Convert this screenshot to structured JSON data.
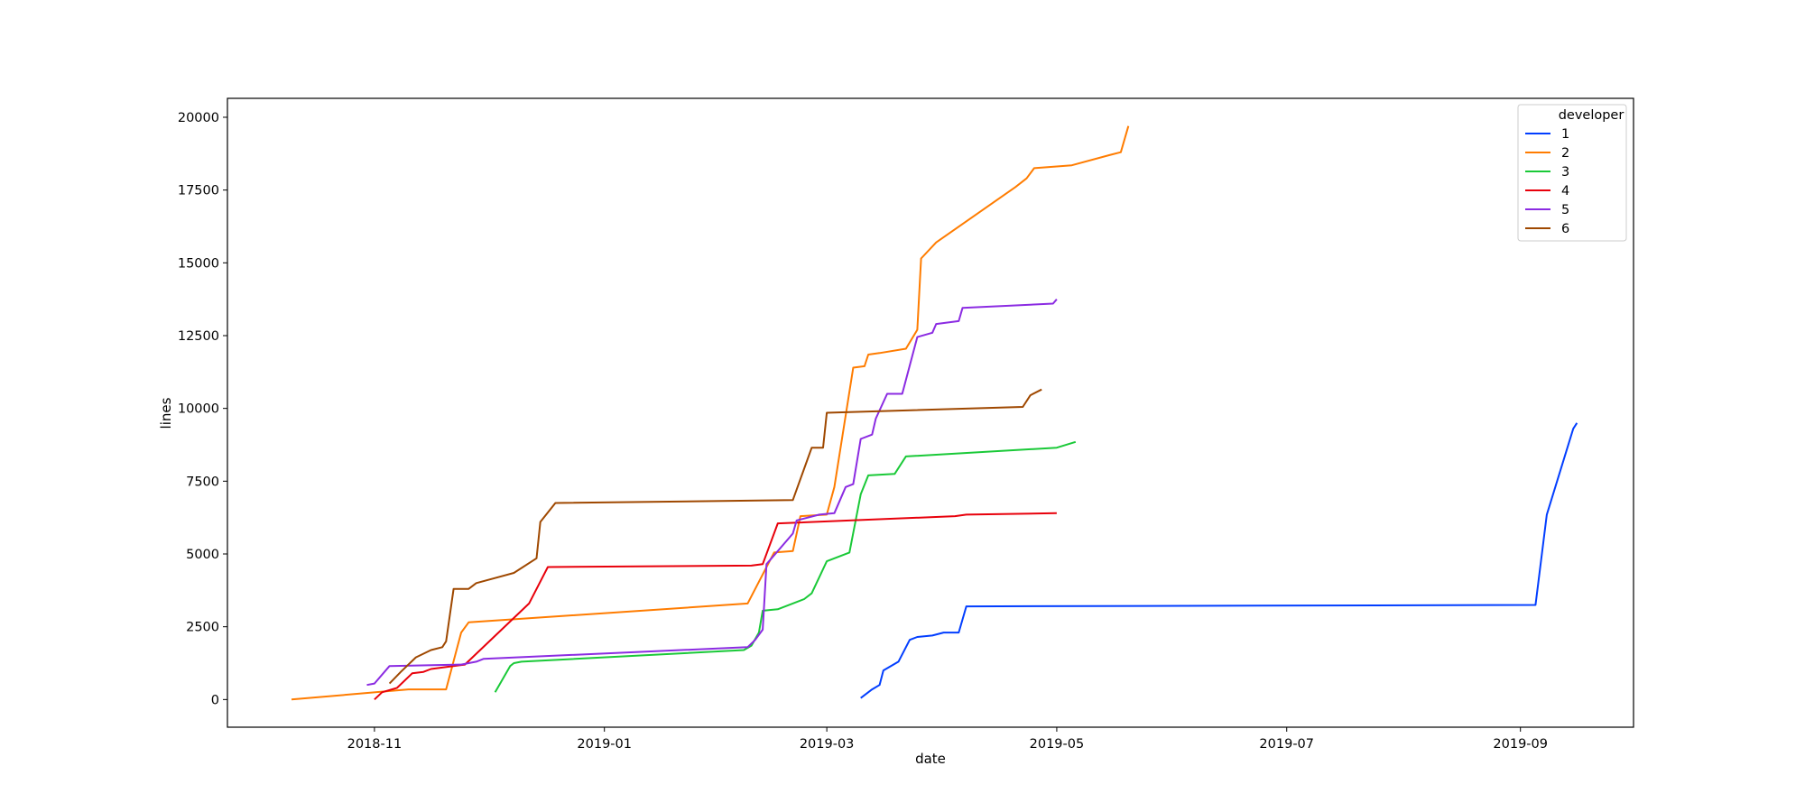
{
  "chart_data": {
    "type": "line",
    "xlabel": "date",
    "ylabel": "lines",
    "x_ticks": [
      "2018-11",
      "2019-01",
      "2019-03",
      "2019-05",
      "2019-07",
      "2019-09"
    ],
    "y_ticks": [
      "0",
      "2500",
      "5000",
      "7500",
      "10000",
      "12500",
      "15000",
      "17500",
      "20000"
    ],
    "xlim": [
      "2018-09-23",
      "2019-10-01"
    ],
    "ylim": [
      -950,
      20650
    ],
    "grid": false,
    "legend": {
      "title": "developer",
      "position": "top-right"
    },
    "series": [
      {
        "name": "1",
        "color": "#023eff",
        "points": [
          [
            "2019-03-10",
            50
          ],
          [
            "2019-03-13",
            350
          ],
          [
            "2019-03-15",
            500
          ],
          [
            "2019-03-16",
            1000
          ],
          [
            "2019-03-20",
            1300
          ],
          [
            "2019-03-23",
            2050
          ],
          [
            "2019-03-25",
            2150
          ],
          [
            "2019-03-29",
            2200
          ],
          [
            "2019-04-01",
            2300
          ],
          [
            "2019-04-05",
            2300
          ],
          [
            "2019-04-07",
            3200
          ],
          [
            "2019-09-05",
            3250
          ],
          [
            "2019-09-08",
            6350
          ],
          [
            "2019-09-15",
            9300
          ],
          [
            "2019-09-16",
            9500
          ]
        ]
      },
      {
        "name": "2",
        "color": "#ff7c00",
        "points": [
          [
            "2018-10-10",
            0
          ],
          [
            "2018-11-10",
            350
          ],
          [
            "2018-11-20",
            350
          ],
          [
            "2018-11-24",
            2300
          ],
          [
            "2018-11-26",
            2650
          ],
          [
            "2019-02-08",
            3300
          ],
          [
            "2019-02-15",
            5050
          ],
          [
            "2019-02-20",
            5100
          ],
          [
            "2019-02-22",
            6300
          ],
          [
            "2019-03-01",
            6350
          ],
          [
            "2019-03-03",
            7300
          ],
          [
            "2019-03-08",
            11400
          ],
          [
            "2019-03-11",
            11450
          ],
          [
            "2019-03-12",
            11850
          ],
          [
            "2019-03-15",
            11900
          ],
          [
            "2019-03-22",
            12050
          ],
          [
            "2019-03-25",
            12700
          ],
          [
            "2019-03-26",
            15150
          ],
          [
            "2019-03-30",
            15700
          ],
          [
            "2019-04-20",
            17600
          ],
          [
            "2019-04-23",
            17900
          ],
          [
            "2019-04-25",
            18250
          ],
          [
            "2019-05-05",
            18350
          ],
          [
            "2019-05-15",
            18700
          ],
          [
            "2019-05-18",
            18800
          ],
          [
            "2019-05-20",
            19700
          ]
        ]
      },
      {
        "name": "3",
        "color": "#1ac938",
        "points": [
          [
            "2018-12-03",
            250
          ],
          [
            "2018-12-07",
            1150
          ],
          [
            "2018-12-08",
            1250
          ],
          [
            "2018-12-10",
            1300
          ],
          [
            "2019-02-07",
            1700
          ],
          [
            "2019-02-09",
            1850
          ],
          [
            "2019-02-11",
            2300
          ],
          [
            "2019-02-12",
            3050
          ],
          [
            "2019-02-16",
            3100
          ],
          [
            "2019-02-23",
            3450
          ],
          [
            "2019-02-25",
            3650
          ],
          [
            "2019-02-29",
            4750
          ],
          [
            "2019-03-07",
            5050
          ],
          [
            "2019-03-10",
            7050
          ],
          [
            "2019-03-12",
            7700
          ],
          [
            "2019-03-19",
            7750
          ],
          [
            "2019-03-22",
            8350
          ],
          [
            "2019-05-01",
            8650
          ],
          [
            "2019-05-06",
            8850
          ]
        ]
      },
      {
        "name": "4",
        "color": "#e8000b",
        "points": [
          [
            "2018-11-01",
            0
          ],
          [
            "2018-11-03",
            250
          ],
          [
            "2018-11-07",
            400
          ],
          [
            "2018-11-11",
            900
          ],
          [
            "2018-11-14",
            950
          ],
          [
            "2018-11-16",
            1050
          ],
          [
            "2018-11-25",
            1200
          ],
          [
            "2018-12-12",
            3300
          ],
          [
            "2018-12-17",
            4550
          ],
          [
            "2019-02-09",
            4600
          ],
          [
            "2019-02-12",
            4650
          ],
          [
            "2019-02-16",
            6050
          ],
          [
            "2019-04-04",
            6300
          ],
          [
            "2019-04-07",
            6350
          ],
          [
            "2019-05-01",
            6400
          ]
        ]
      },
      {
        "name": "5",
        "color": "#8b2be2",
        "points": [
          [
            "2018-10-30",
            500
          ],
          [
            "2018-11-01",
            550
          ],
          [
            "2018-11-05",
            1150
          ],
          [
            "2018-11-24",
            1200
          ],
          [
            "2018-11-28",
            1300
          ],
          [
            "2018-11-30",
            1400
          ],
          [
            "2019-02-08",
            1800
          ],
          [
            "2019-02-10",
            2050
          ],
          [
            "2019-02-12",
            2400
          ],
          [
            "2019-02-13",
            4650
          ],
          [
            "2019-02-20",
            5700
          ],
          [
            "2019-02-21",
            6150
          ],
          [
            "2019-02-27",
            6350
          ],
          [
            "2019-03-03",
            6400
          ],
          [
            "2019-03-06",
            7300
          ],
          [
            "2019-03-08",
            7400
          ],
          [
            "2019-03-10",
            8950
          ],
          [
            "2019-03-13",
            9100
          ],
          [
            "2019-03-14",
            9650
          ],
          [
            "2019-03-17",
            10500
          ],
          [
            "2019-03-21",
            10500
          ],
          [
            "2019-03-25",
            12450
          ],
          [
            "2019-03-29",
            12600
          ],
          [
            "2019-03-30",
            12900
          ],
          [
            "2019-04-05",
            13000
          ],
          [
            "2019-04-06",
            13450
          ],
          [
            "2019-04-30",
            13600
          ],
          [
            "2019-05-01",
            13750
          ]
        ]
      },
      {
        "name": "6",
        "color": "#9f4800",
        "points": [
          [
            "2018-11-05",
            550
          ],
          [
            "2018-11-08",
            950
          ],
          [
            "2018-11-12",
            1450
          ],
          [
            "2018-11-16",
            1700
          ],
          [
            "2018-11-19",
            1800
          ],
          [
            "2018-11-20",
            2000
          ],
          [
            "2018-11-22",
            3800
          ],
          [
            "2018-11-26",
            3800
          ],
          [
            "2018-11-28",
            4000
          ],
          [
            "2018-12-08",
            4350
          ],
          [
            "2018-12-14",
            4850
          ],
          [
            "2018-12-15",
            6100
          ],
          [
            "2018-12-19",
            6750
          ],
          [
            "2019-02-20",
            6850
          ],
          [
            "2019-02-25",
            8650
          ],
          [
            "2019-02-28",
            8650
          ],
          [
            "2019-03-01",
            9850
          ],
          [
            "2019-04-22",
            10050
          ],
          [
            "2019-04-24",
            10450
          ],
          [
            "2019-04-27",
            10650
          ]
        ]
      }
    ]
  }
}
